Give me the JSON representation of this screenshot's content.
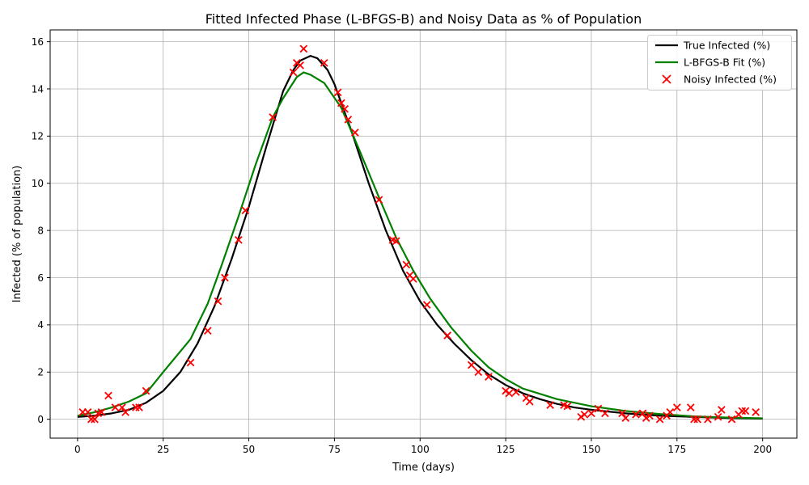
{
  "chart_data": {
    "type": "line",
    "title": "Fitted Infected Phase (L-BFGS-B) and Noisy Data as % of Population",
    "xlabel": "Time (days)",
    "ylabel": "Infected (% of population)",
    "xlim": [
      -8,
      210
    ],
    "ylim": [
      -0.8,
      16.5
    ],
    "xticks": [
      0,
      25,
      50,
      75,
      100,
      125,
      150,
      175,
      200
    ],
    "yticks": [
      0,
      2,
      4,
      6,
      8,
      10,
      12,
      14,
      16
    ],
    "grid": true,
    "legend_position": "top-right",
    "series": [
      {
        "name": "True Infected (%)",
        "kind": "line",
        "color": "#000000",
        "x": [
          0,
          5,
          10,
          15,
          20,
          25,
          30,
          35,
          40,
          45,
          50,
          55,
          60,
          63,
          65,
          68,
          70,
          73,
          75,
          80,
          85,
          90,
          95,
          100,
          105,
          110,
          115,
          120,
          125,
          130,
          135,
          140,
          145,
          150,
          160,
          170,
          180,
          190,
          200
        ],
        "y": [
          0.1,
          0.15,
          0.25,
          0.4,
          0.7,
          1.2,
          2.0,
          3.2,
          4.8,
          6.8,
          9.0,
          11.5,
          13.9,
          14.8,
          15.2,
          15.4,
          15.3,
          14.8,
          14.2,
          12.2,
          10.0,
          8.0,
          6.3,
          5.0,
          4.0,
          3.2,
          2.5,
          1.9,
          1.45,
          1.1,
          0.85,
          0.65,
          0.5,
          0.4,
          0.25,
          0.15,
          0.1,
          0.05,
          0.02
        ]
      },
      {
        "name": "L-BFGS-B Fit (%)",
        "kind": "line",
        "color": "#008000",
        "x": [
          0,
          5,
          10,
          15,
          20,
          25,
          33,
          38,
          42,
          47,
          52,
          57,
          60,
          64,
          66,
          68,
          72,
          77,
          82,
          88,
          93,
          98,
          103,
          109,
          115,
          120,
          125,
          130,
          140,
          150,
          160,
          170,
          180,
          190,
          200
        ],
        "y": [
          0.15,
          0.3,
          0.5,
          0.75,
          1.1,
          2.0,
          3.4,
          4.9,
          6.5,
          8.6,
          10.8,
          12.8,
          13.6,
          14.5,
          14.7,
          14.6,
          14.25,
          13.2,
          11.5,
          9.4,
          7.7,
          6.3,
          5.1,
          3.9,
          2.9,
          2.2,
          1.7,
          1.3,
          0.85,
          0.55,
          0.35,
          0.22,
          0.12,
          0.07,
          0.04
        ]
      },
      {
        "name": "Noisy Infected (%)",
        "kind": "scatter",
        "color": "#ff0000",
        "x": [
          1.5,
          3,
          4,
          5,
          6,
          7,
          9,
          11,
          13,
          14,
          17,
          18,
          20,
          33,
          38,
          41,
          43,
          47,
          49,
          57,
          63,
          64,
          65,
          66,
          72,
          76,
          77,
          78,
          79,
          81,
          88,
          92,
          93,
          96,
          97,
          98,
          102,
          108,
          115,
          117,
          120,
          125,
          126,
          128,
          131,
          132,
          138,
          142,
          143,
          147,
          148,
          150,
          152,
          154,
          159,
          160,
          163,
          165,
          166,
          167,
          170,
          172,
          173,
          175,
          179,
          180,
          181,
          184,
          187,
          188,
          191,
          193,
          194,
          195,
          198
        ],
        "y": [
          0.3,
          0.3,
          0.0,
          0.0,
          0.25,
          0.3,
          1.0,
          0.5,
          0.5,
          0.3,
          0.5,
          0.5,
          1.2,
          2.4,
          3.75,
          5.0,
          6.0,
          7.6,
          8.85,
          12.8,
          14.7,
          15.1,
          15.0,
          15.7,
          15.1,
          13.85,
          13.4,
          13.15,
          12.7,
          12.15,
          9.3,
          7.6,
          7.55,
          6.55,
          6.1,
          5.95,
          4.85,
          3.55,
          2.3,
          2.0,
          1.8,
          1.2,
          1.1,
          1.15,
          0.9,
          0.75,
          0.6,
          0.6,
          0.55,
          0.1,
          0.2,
          0.25,
          0.45,
          0.25,
          0.25,
          0.05,
          0.2,
          0.25,
          0.05,
          0.15,
          0.0,
          0.15,
          0.3,
          0.5,
          0.5,
          0.0,
          0.0,
          0.0,
          0.1,
          0.4,
          0.0,
          0.2,
          0.35,
          0.35,
          0.3
        ]
      }
    ]
  }
}
